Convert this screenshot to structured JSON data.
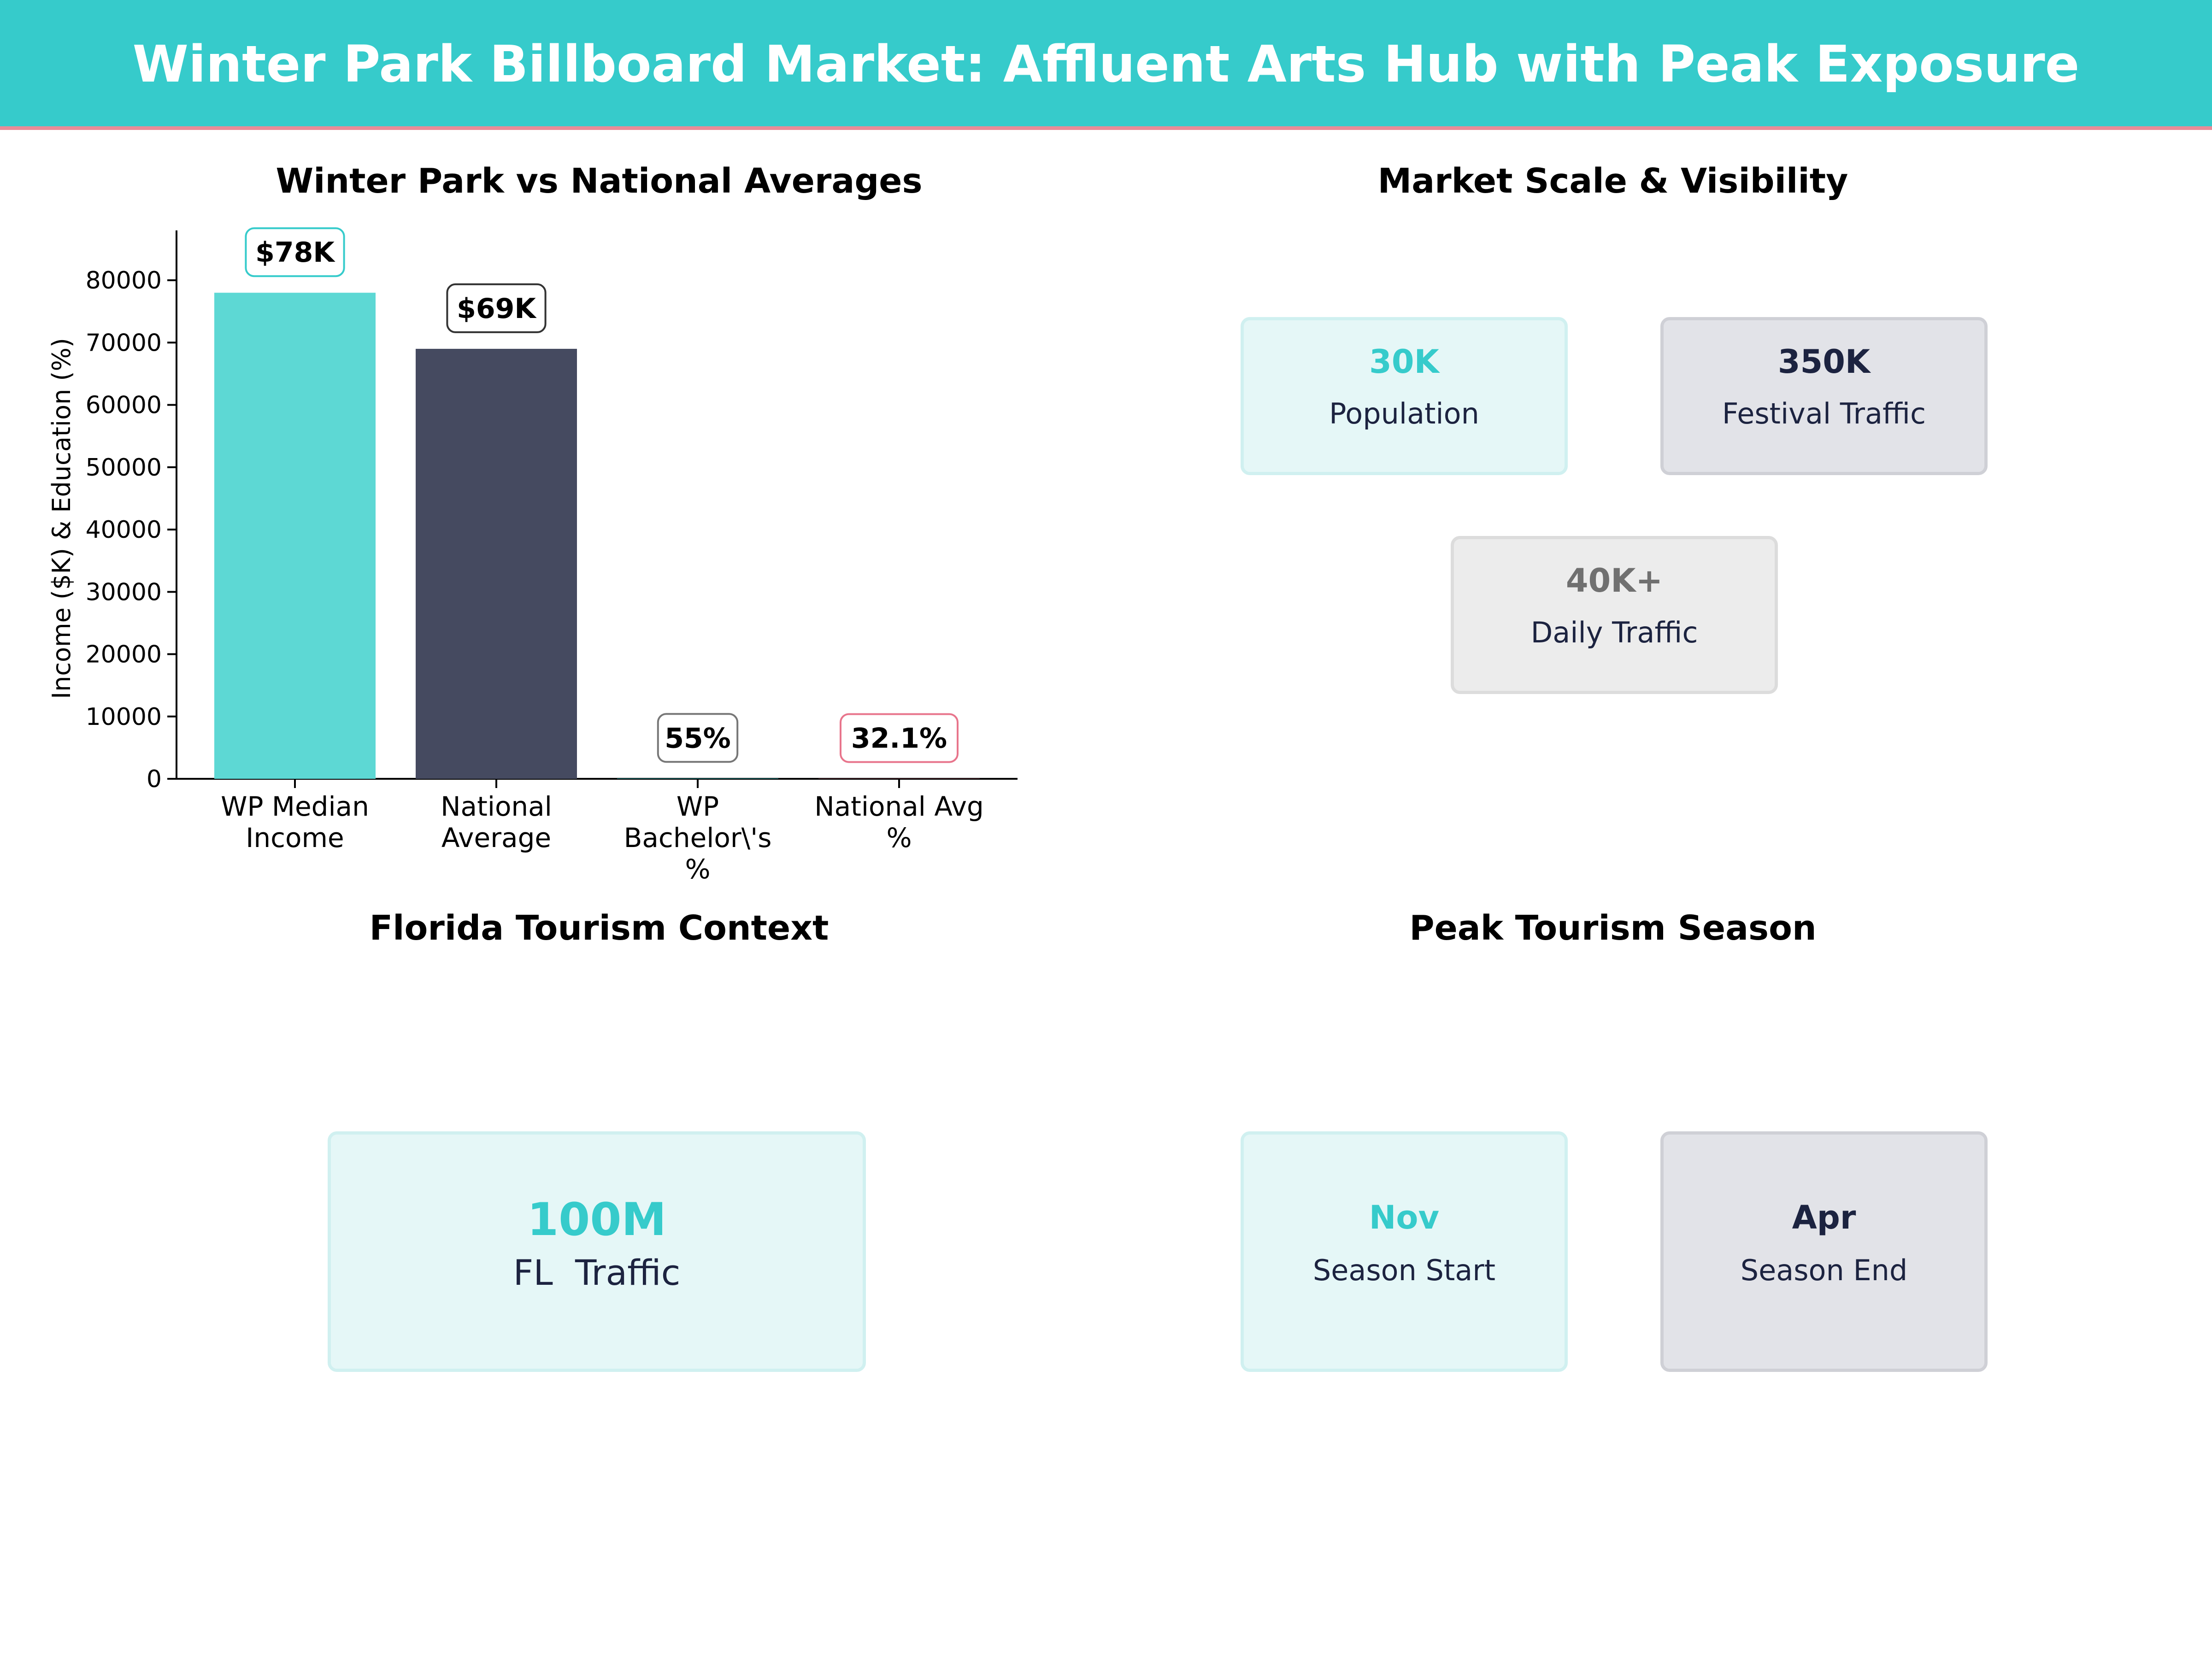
{
  "page_title": "Winter Park Billboard Market: Affluent Arts Hub with Peak Exposure",
  "panels": {
    "comparison_title": "Winter Park vs National Averages",
    "market_title": "Market Scale & Visibility",
    "tourism_title": "Florida Tourism Context",
    "season_title": "Peak Tourism Season"
  },
  "colors": {
    "header": "#36cbcb",
    "header_rule": "#e88c98",
    "teal": "#36cbcb",
    "navy": "#1c2340",
    "grey": "#707070",
    "pink": "#e8758c"
  },
  "chart_data": {
    "type": "bar",
    "title": "Winter Park vs National Averages",
    "xlabel": "",
    "ylabel": "Income ($K) & Education (%)",
    "categories": [
      "WP Median\nIncome",
      "National\nAverage",
      "WP\nBachelor\\'s\n%",
      "National Avg\n%"
    ],
    "values": [
      78000,
      69000,
      55,
      32.1
    ],
    "data_labels": [
      "$78K",
      "$69K",
      "55%",
      "32.1%"
    ],
    "bar_colors": [
      "#5dd8d4",
      "#454a60",
      "#36cbcb",
      "#e8758c"
    ],
    "label_border_colors": [
      "#36cbcb",
      "#333333",
      "#777777",
      "#e8758c"
    ],
    "ylim": [
      0,
      88000
    ],
    "yticks": [
      0,
      10000,
      20000,
      30000,
      40000,
      50000,
      60000,
      70000,
      80000
    ],
    "grid": false
  },
  "market": {
    "population_value": "30K",
    "population_label": "Population",
    "festival_value": "350K",
    "festival_label": "Festival Traffic",
    "daily_value": "40K+",
    "daily_label": "Daily Traffic"
  },
  "tourism": {
    "value": "100M",
    "label": "FL  Traffic"
  },
  "season": {
    "start_value": "Nov",
    "start_label": "Season Start",
    "end_value": "Apr",
    "end_label": "Season End"
  }
}
